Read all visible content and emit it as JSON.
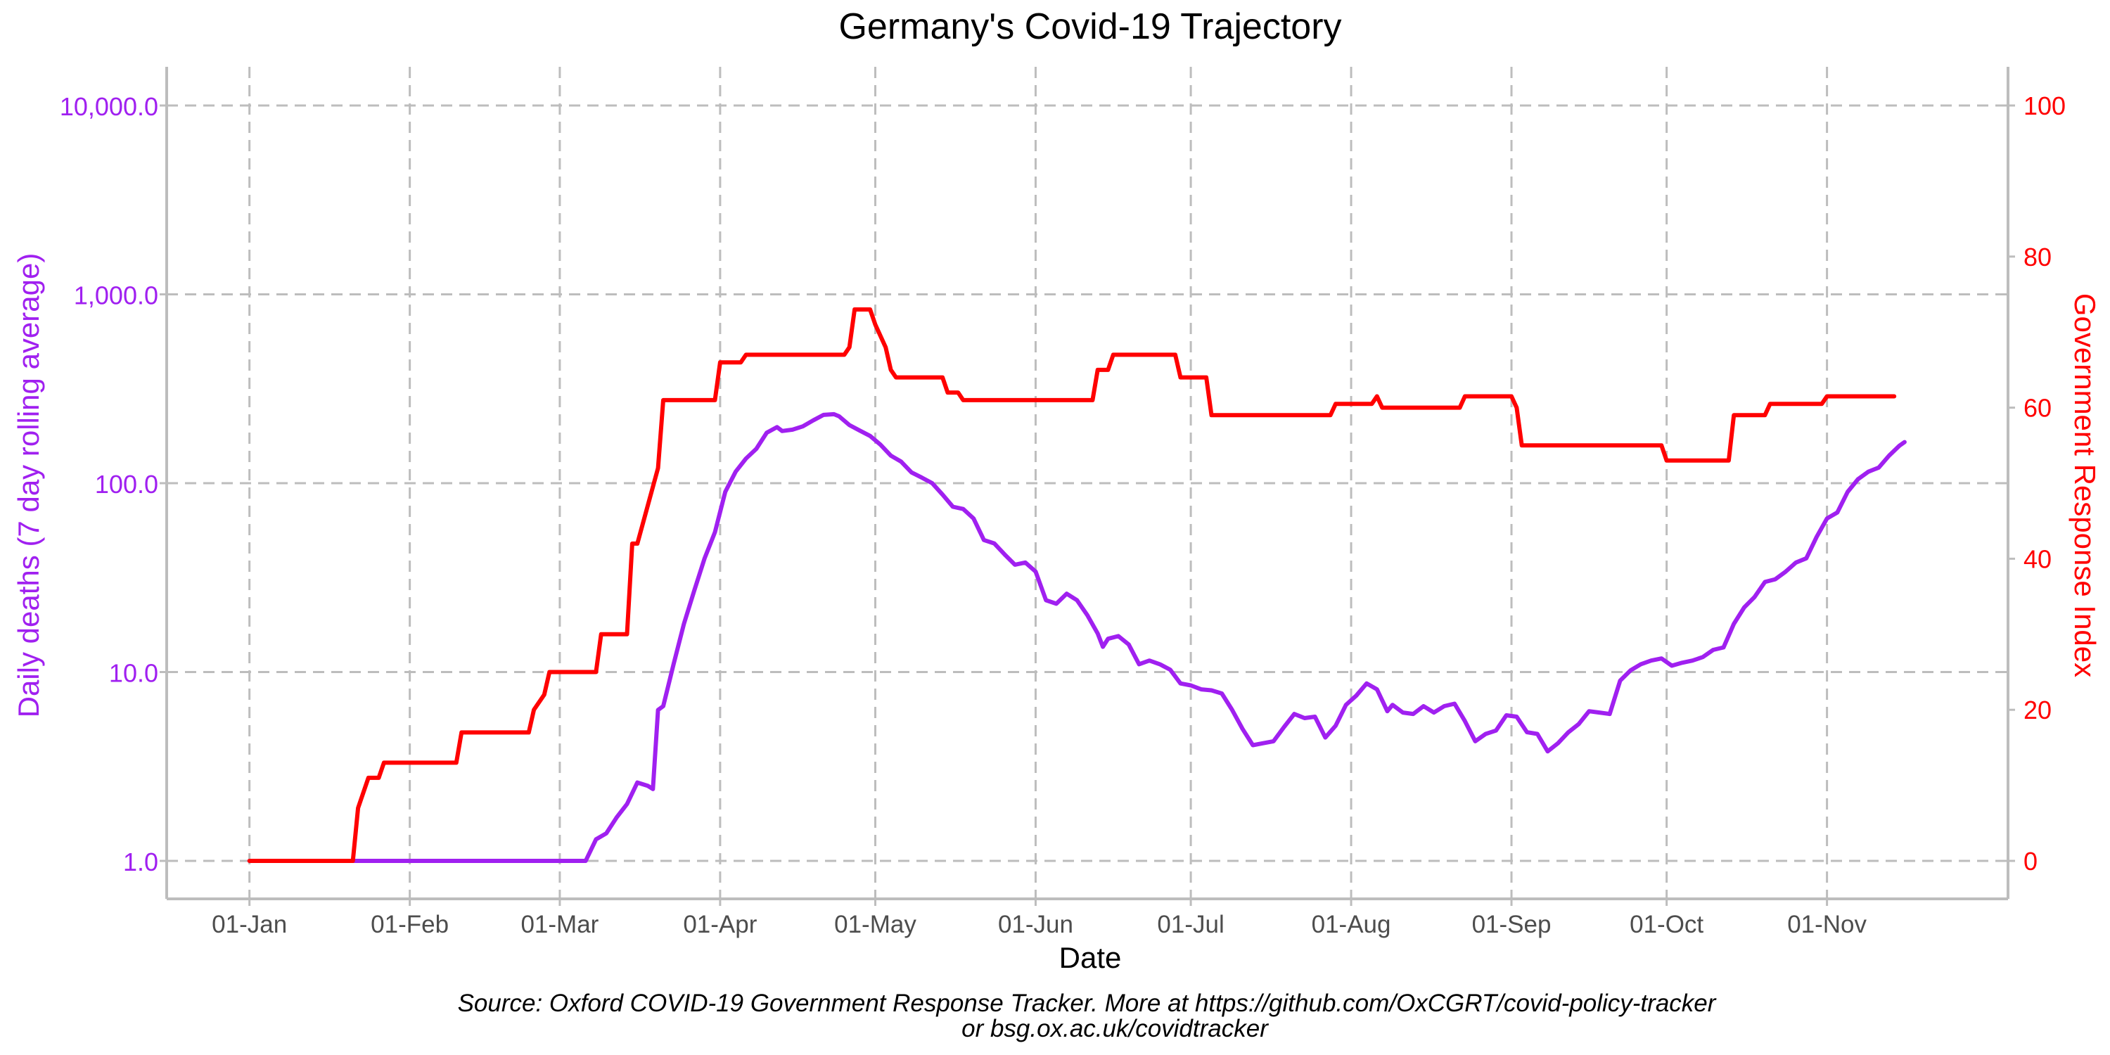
{
  "chart_data": {
    "type": "line",
    "title": "Germany's Covid-19 Trajectory",
    "xlabel": "Date",
    "ylabel_left": "Daily deaths (7 day rolling average)",
    "ylabel_right": "Government Response Index",
    "caption_line1": "Source: Oxford COVID-19 Government Response Tracker. More at https://github.com/OxCGRT/covid-policy-tracker",
    "caption_line2": "or bsg.ox.ac.uk/covidtracker",
    "x_ticks": [
      "01-Jan",
      "01-Feb",
      "01-Mar",
      "01-Apr",
      "01-May",
      "01-Jun",
      "01-Jul",
      "01-Aug",
      "01-Sep",
      "01-Oct",
      "01-Nov"
    ],
    "x_tick_dates": [
      "2020-01-01",
      "2020-02-01",
      "2020-03-01",
      "2020-04-01",
      "2020-05-01",
      "2020-06-01",
      "2020-07-01",
      "2020-08-01",
      "2020-09-01",
      "2020-10-01",
      "2020-11-01"
    ],
    "xlim": [
      "2019-12-16",
      "2020-12-06"
    ],
    "left_axis": {
      "scale": "log10",
      "ylim": [
        1,
        10000
      ],
      "ticks": [
        1,
        10,
        100,
        1000,
        10000
      ],
      "tick_labels": [
        "1.0",
        "10.0",
        "100.0",
        "1,000.0",
        "10,000.0"
      ]
    },
    "right_axis": {
      "scale": "linear",
      "ylim": [
        0,
        100
      ],
      "ticks": [
        0,
        20,
        40,
        60,
        80,
        100
      ],
      "tick_labels": [
        "0",
        "20",
        "40",
        "60",
        "80",
        "100"
      ]
    },
    "grid": true,
    "series": [
      {
        "axis": "left",
        "color": "#a020f0",
        "points": [
          [
            "2020-01-01",
            1
          ],
          [
            "2020-03-06",
            1
          ],
          [
            "2020-03-08",
            1.3
          ],
          [
            "2020-03-10",
            1.4
          ],
          [
            "2020-03-12",
            1.7
          ],
          [
            "2020-03-14",
            2.0
          ],
          [
            "2020-03-16",
            2.6
          ],
          [
            "2020-03-18",
            2.5
          ],
          [
            "2020-03-19",
            2.4
          ],
          [
            "2020-03-20",
            6.3
          ],
          [
            "2020-03-21",
            6.6
          ],
          [
            "2020-03-23",
            11
          ],
          [
            "2020-03-25",
            18
          ],
          [
            "2020-03-27",
            27
          ],
          [
            "2020-03-29",
            40
          ],
          [
            "2020-03-31",
            55
          ],
          [
            "2020-04-02",
            90
          ],
          [
            "2020-04-04",
            115
          ],
          [
            "2020-04-06",
            135
          ],
          [
            "2020-04-08",
            152
          ],
          [
            "2020-04-10",
            185
          ],
          [
            "2020-04-12",
            198
          ],
          [
            "2020-04-13",
            189
          ],
          [
            "2020-04-15",
            192
          ],
          [
            "2020-04-17",
            200
          ],
          [
            "2020-04-19",
            215
          ],
          [
            "2020-04-21",
            230
          ],
          [
            "2020-04-23",
            232
          ],
          [
            "2020-04-24",
            226
          ],
          [
            "2020-04-26",
            203
          ],
          [
            "2020-04-28",
            190
          ],
          [
            "2020-04-30",
            178
          ],
          [
            "2020-05-02",
            160
          ],
          [
            "2020-05-04",
            140
          ],
          [
            "2020-05-06",
            130
          ],
          [
            "2020-05-08",
            114
          ],
          [
            "2020-05-10",
            107
          ],
          [
            "2020-05-12",
            100
          ],
          [
            "2020-05-14",
            87
          ],
          [
            "2020-05-16",
            75
          ],
          [
            "2020-05-18",
            73
          ],
          [
            "2020-05-20",
            65
          ],
          [
            "2020-05-22",
            50
          ],
          [
            "2020-05-24",
            48
          ],
          [
            "2020-05-26",
            42
          ],
          [
            "2020-05-28",
            37
          ],
          [
            "2020-05-30",
            38
          ],
          [
            "2020-06-01",
            34
          ],
          [
            "2020-06-03",
            24
          ],
          [
            "2020-06-05",
            23
          ],
          [
            "2020-06-07",
            26
          ],
          [
            "2020-06-09",
            24
          ],
          [
            "2020-06-11",
            20
          ],
          [
            "2020-06-13",
            16
          ],
          [
            "2020-06-14",
            13.6
          ],
          [
            "2020-06-15",
            15
          ],
          [
            "2020-06-17",
            15.5
          ],
          [
            "2020-06-19",
            14
          ],
          [
            "2020-06-21",
            11
          ],
          [
            "2020-06-23",
            11.5
          ],
          [
            "2020-06-25",
            11
          ],
          [
            "2020-06-27",
            10.3
          ],
          [
            "2020-06-29",
            8.7
          ],
          [
            "2020-07-01",
            8.5
          ],
          [
            "2020-07-03",
            8.1
          ],
          [
            "2020-07-05",
            8.0
          ],
          [
            "2020-07-07",
            7.7
          ],
          [
            "2020-07-09",
            6.3
          ],
          [
            "2020-07-11",
            5.0
          ],
          [
            "2020-07-13",
            4.1
          ],
          [
            "2020-07-15",
            4.2
          ],
          [
            "2020-07-17",
            4.3
          ],
          [
            "2020-07-19",
            5.1
          ],
          [
            "2020-07-21",
            6.0
          ],
          [
            "2020-07-23",
            5.7
          ],
          [
            "2020-07-25",
            5.8
          ],
          [
            "2020-07-27",
            4.5
          ],
          [
            "2020-07-29",
            5.2
          ],
          [
            "2020-07-31",
            6.7
          ],
          [
            "2020-08-02",
            7.5
          ],
          [
            "2020-08-04",
            8.7
          ],
          [
            "2020-08-06",
            8.1
          ],
          [
            "2020-08-08",
            6.2
          ],
          [
            "2020-08-09",
            6.7
          ],
          [
            "2020-08-11",
            6.1
          ],
          [
            "2020-08-13",
            6.0
          ],
          [
            "2020-08-15",
            6.6
          ],
          [
            "2020-08-17",
            6.1
          ],
          [
            "2020-08-19",
            6.6
          ],
          [
            "2020-08-21",
            6.8
          ],
          [
            "2020-08-23",
            5.5
          ],
          [
            "2020-08-25",
            4.3
          ],
          [
            "2020-08-27",
            4.7
          ],
          [
            "2020-08-29",
            4.9
          ],
          [
            "2020-08-31",
            5.9
          ],
          [
            "2020-09-02",
            5.8
          ],
          [
            "2020-09-04",
            4.8
          ],
          [
            "2020-09-06",
            4.7
          ],
          [
            "2020-09-08",
            3.8
          ],
          [
            "2020-09-10",
            4.2
          ],
          [
            "2020-09-12",
            4.8
          ],
          [
            "2020-09-14",
            5.3
          ],
          [
            "2020-09-16",
            6.2
          ],
          [
            "2020-09-18",
            6.1
          ],
          [
            "2020-09-20",
            6.0
          ],
          [
            "2020-09-22",
            9.0
          ],
          [
            "2020-09-24",
            10.2
          ],
          [
            "2020-09-26",
            11.0
          ],
          [
            "2020-09-28",
            11.5
          ],
          [
            "2020-09-30",
            11.8
          ],
          [
            "2020-10-02",
            10.8
          ],
          [
            "2020-10-04",
            11.2
          ],
          [
            "2020-10-06",
            11.5
          ],
          [
            "2020-10-08",
            12.0
          ],
          [
            "2020-10-10",
            13.1
          ],
          [
            "2020-10-12",
            13.5
          ],
          [
            "2020-10-14",
            18
          ],
          [
            "2020-10-16",
            22
          ],
          [
            "2020-10-18",
            25
          ],
          [
            "2020-10-20",
            30
          ],
          [
            "2020-10-22",
            31
          ],
          [
            "2020-10-24",
            34
          ],
          [
            "2020-10-26",
            38
          ],
          [
            "2020-10-28",
            40
          ],
          [
            "2020-10-30",
            52
          ],
          [
            "2020-11-01",
            65
          ],
          [
            "2020-11-03",
            70
          ],
          [
            "2020-11-05",
            90
          ],
          [
            "2020-11-07",
            105
          ],
          [
            "2020-11-09",
            115
          ],
          [
            "2020-11-11",
            121
          ],
          [
            "2020-11-13",
            140
          ],
          [
            "2020-11-15",
            158
          ],
          [
            "2020-11-16",
            165
          ]
        ]
      },
      {
        "axis": "right",
        "color": "#ff0000",
        "points": [
          [
            "2020-01-01",
            0
          ],
          [
            "2020-01-21",
            0
          ],
          [
            "2020-01-22",
            7
          ],
          [
            "2020-01-24",
            11
          ],
          [
            "2020-01-26",
            11
          ],
          [
            "2020-01-27",
            13
          ],
          [
            "2020-02-10",
            13
          ],
          [
            "2020-02-11",
            17
          ],
          [
            "2020-02-24",
            17
          ],
          [
            "2020-02-25",
            20
          ],
          [
            "2020-02-27",
            22
          ],
          [
            "2020-02-28",
            25
          ],
          [
            "2020-03-08",
            25
          ],
          [
            "2020-03-09",
            30
          ],
          [
            "2020-03-14",
            30
          ],
          [
            "2020-03-15",
            42
          ],
          [
            "2020-03-16",
            42
          ],
          [
            "2020-03-18",
            47
          ],
          [
            "2020-03-20",
            52
          ],
          [
            "2020-03-21",
            61
          ],
          [
            "2020-03-31",
            61
          ],
          [
            "2020-04-01",
            66
          ],
          [
            "2020-04-05",
            66
          ],
          [
            "2020-04-06",
            67
          ],
          [
            "2020-04-25",
            67
          ],
          [
            "2020-04-26",
            68
          ],
          [
            "2020-04-27",
            73
          ],
          [
            "2020-04-30",
            73
          ],
          [
            "2020-05-01",
            71
          ],
          [
            "2020-05-03",
            68
          ],
          [
            "2020-05-04",
            65
          ],
          [
            "2020-05-05",
            64
          ],
          [
            "2020-05-14",
            64
          ],
          [
            "2020-05-15",
            62
          ],
          [
            "2020-05-17",
            62
          ],
          [
            "2020-05-18",
            61
          ],
          [
            "2020-06-12",
            61
          ],
          [
            "2020-06-13",
            65
          ],
          [
            "2020-06-15",
            65
          ],
          [
            "2020-06-16",
            67
          ],
          [
            "2020-06-28",
            67
          ],
          [
            "2020-06-29",
            64
          ],
          [
            "2020-07-04",
            64
          ],
          [
            "2020-07-05",
            59
          ],
          [
            "2020-07-28",
            59
          ],
          [
            "2020-07-29",
            60.5
          ],
          [
            "2020-08-05",
            60.5
          ],
          [
            "2020-08-06",
            61.5
          ],
          [
            "2020-08-07",
            60
          ],
          [
            "2020-08-22",
            60
          ],
          [
            "2020-08-23",
            61.5
          ],
          [
            "2020-09-01",
            61.5
          ],
          [
            "2020-09-02",
            60
          ],
          [
            "2020-09-03",
            55
          ],
          [
            "2020-09-30",
            55
          ],
          [
            "2020-10-01",
            53
          ],
          [
            "2020-10-13",
            53
          ],
          [
            "2020-10-14",
            59
          ],
          [
            "2020-10-20",
            59
          ],
          [
            "2020-10-21",
            60.5
          ],
          [
            "2020-10-31",
            60.5
          ],
          [
            "2020-11-01",
            61.5
          ],
          [
            "2020-11-14",
            61.5
          ]
        ]
      }
    ]
  },
  "colors": {
    "deaths": "#a020f0",
    "response": "#ff0000",
    "grid": "#bdbdbd",
    "axis": "#bdbdbd",
    "text": "#000000",
    "tick_text": "#4d4d4d"
  }
}
